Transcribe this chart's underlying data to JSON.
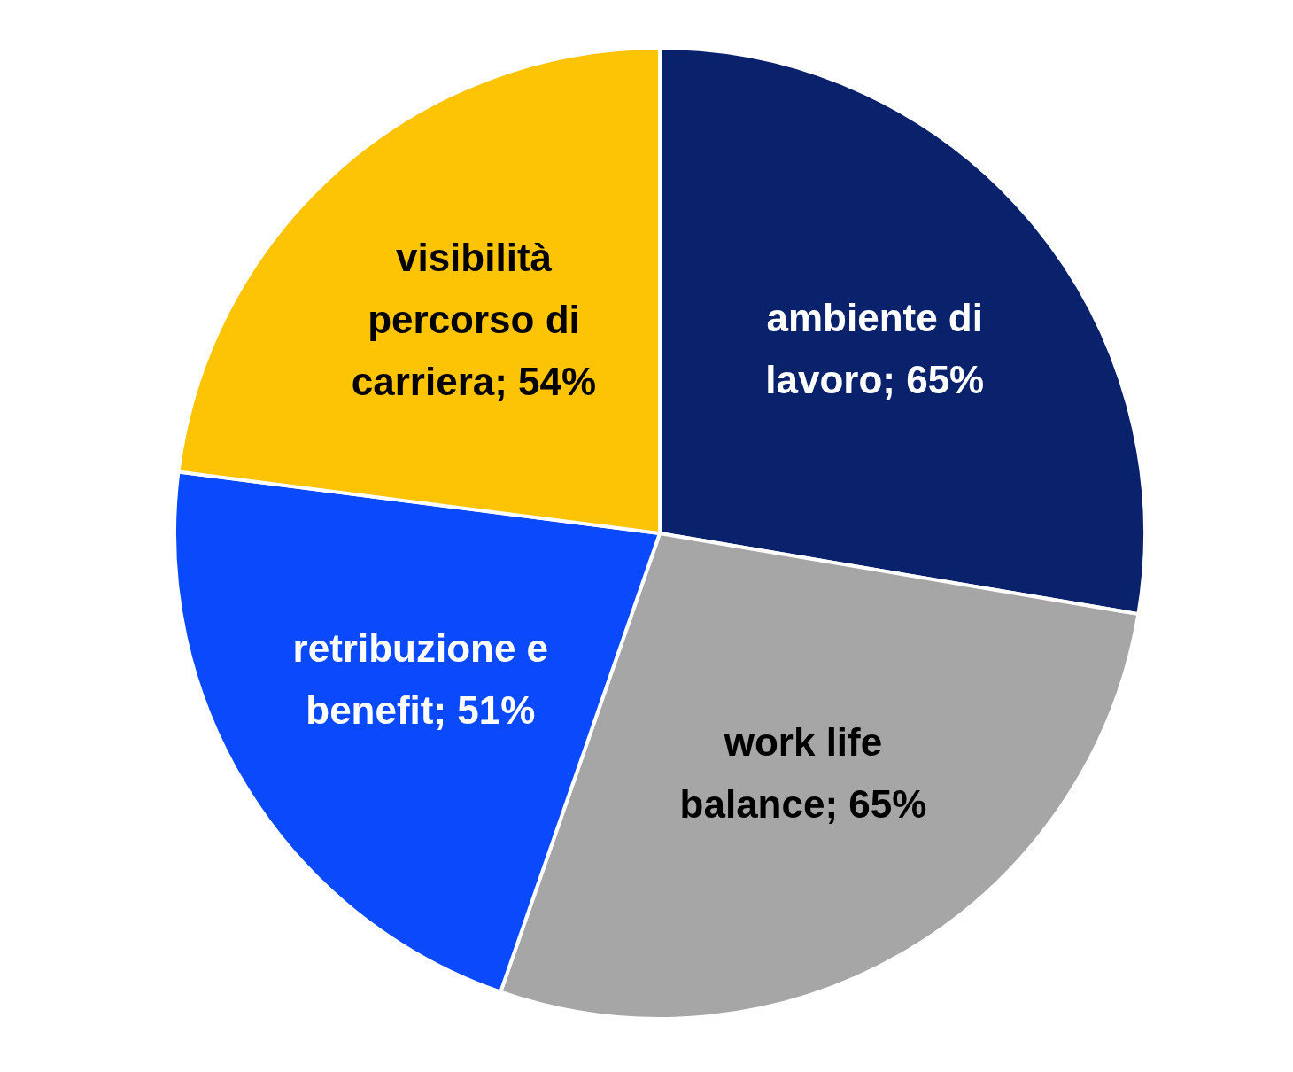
{
  "chart_data": {
    "type": "pie",
    "categories": [
      "ambiente di lavoro",
      "work life balance",
      "retribuzione e benefit",
      "visibilità percorso di carriera"
    ],
    "values": [
      65,
      65,
      51,
      54
    ],
    "colors": [
      "#0a216c",
      "#a6a6a6",
      "#0b4afc",
      "#fdc305"
    ],
    "value_labels": [
      "65%",
      "65%",
      "51%",
      "54%"
    ],
    "legend": false
  }
}
